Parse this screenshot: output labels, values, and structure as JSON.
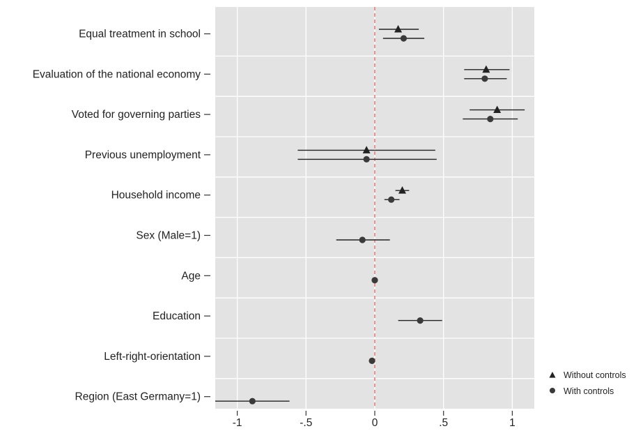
{
  "chart_data": {
    "type": "scatter",
    "subtype": "coefficient-plot",
    "title": "",
    "xlabel": "",
    "ylabel": "",
    "xlim": [
      -1.16,
      1.16
    ],
    "x_ticks": [
      -1,
      -0.5,
      0,
      0.5,
      1
    ],
    "x_tick_labels": [
      "-1",
      "-.5",
      "0",
      ".5",
      "1"
    ],
    "reference_line": {
      "x": 0,
      "style": "dashed",
      "color": "#e06666"
    },
    "grid": true,
    "legend_position": "right-bottom",
    "categories": [
      "Equal treatment in school",
      "Evaluation of the national economy",
      "Voted for governing parties",
      "Previous unemployment",
      "Household income",
      "Sex (Male=1)",
      "Age",
      "Education",
      "Left-right-orientation",
      "Region (East Germany=1)"
    ],
    "series": [
      {
        "name": "Without controls",
        "marker": "triangle",
        "points": [
          {
            "category": "Equal treatment in school",
            "x": 0.17,
            "ci": [
              0.03,
              0.32
            ]
          },
          {
            "category": "Evaluation of the national economy",
            "x": 0.81,
            "ci": [
              0.65,
              0.98
            ]
          },
          {
            "category": "Voted for governing parties",
            "x": 0.89,
            "ci": [
              0.69,
              1.09
            ]
          },
          {
            "category": "Previous unemployment",
            "x": -0.06,
            "ci": [
              -0.56,
              0.44
            ]
          },
          {
            "category": "Household income",
            "x": 0.2,
            "ci": [
              0.15,
              0.25
            ]
          }
        ]
      },
      {
        "name": "With controls",
        "marker": "circle",
        "points": [
          {
            "category": "Equal treatment in school",
            "x": 0.21,
            "ci": [
              0.06,
              0.36
            ]
          },
          {
            "category": "Evaluation of the national economy",
            "x": 0.8,
            "ci": [
              0.65,
              0.96
            ]
          },
          {
            "category": "Voted for governing parties",
            "x": 0.84,
            "ci": [
              0.64,
              1.04
            ]
          },
          {
            "category": "Previous unemployment",
            "x": -0.06,
            "ci": [
              -0.56,
              0.45
            ]
          },
          {
            "category": "Household income",
            "x": 0.12,
            "ci": [
              0.07,
              0.18
            ]
          },
          {
            "category": "Sex (Male=1)",
            "x": -0.09,
            "ci": [
              -0.28,
              0.11
            ]
          },
          {
            "category": "Age",
            "x": 0.0,
            "ci": [
              -0.01,
              0.01
            ]
          },
          {
            "category": "Education",
            "x": 0.33,
            "ci": [
              0.17,
              0.49
            ]
          },
          {
            "category": "Left-right-orientation",
            "x": -0.02,
            "ci": [
              -0.03,
              -0.01
            ]
          },
          {
            "category": "Region (East Germany=1)",
            "x": -0.89,
            "ci": [
              -1.16,
              -0.62
            ]
          }
        ]
      }
    ],
    "colors": {
      "panel_background": "#e3e3e3",
      "grid": "#ffffff",
      "marker": "#222222",
      "circle_marker": "#3a3a3a",
      "reference_line": "#e06666"
    }
  }
}
